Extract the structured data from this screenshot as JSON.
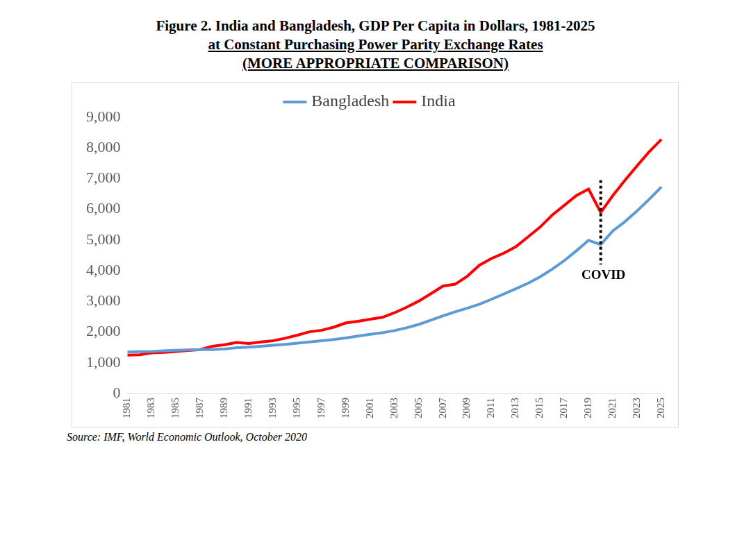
{
  "chart_data": {
    "type": "line",
    "title": "Figure 2. India and Bangladesh, GDP Per Capita in Dollars, 1981-2025",
    "subtitle": [
      "at Constant Purchasing Power Parity Exchange Rates",
      "(MORE APPROPRIATE COMPARISON)"
    ],
    "source": "Source: IMF, World Economic Outlook, October 2020",
    "categories": [
      "1981",
      null,
      "1983",
      null,
      "1985",
      null,
      "1987",
      null,
      "1989",
      null,
      "1991",
      null,
      "1993",
      null,
      "1995",
      null,
      "1997",
      null,
      "1999",
      null,
      "2001",
      null,
      "2003",
      null,
      "2005",
      null,
      "2007",
      null,
      "2009",
      null,
      "2011",
      null,
      "2013",
      null,
      "2015",
      null,
      "2017",
      null,
      "2019",
      null,
      "2021",
      null,
      "2023",
      null,
      "2025"
    ],
    "series": [
      {
        "name": "Bangladesh",
        "color": "#5b9bd5",
        "values": [
          1350,
          1360,
          1370,
          1390,
          1410,
          1420,
          1430,
          1430,
          1450,
          1490,
          1510,
          1540,
          1570,
          1600,
          1640,
          1680,
          1720,
          1760,
          1810,
          1870,
          1930,
          1980,
          2050,
          2140,
          2250,
          2390,
          2530,
          2660,
          2780,
          2910,
          3070,
          3240,
          3410,
          3590,
          3800,
          4050,
          4330,
          4650,
          4990,
          4850,
          5300,
          5600,
          5950,
          6330,
          6730
        ]
      },
      {
        "name": "India",
        "color": "#ff0000",
        "values": [
          1250,
          1260,
          1320,
          1340,
          1370,
          1400,
          1430,
          1540,
          1590,
          1660,
          1630,
          1680,
          1720,
          1800,
          1900,
          2010,
          2060,
          2160,
          2300,
          2350,
          2420,
          2480,
          2630,
          2810,
          3010,
          3250,
          3500,
          3560,
          3820,
          4180,
          4400,
          4570,
          4780,
          5100,
          5420,
          5810,
          6130,
          6450,
          6660,
          5900,
          6450,
          6950,
          7420,
          7880,
          8280
        ]
      }
    ],
    "ylim": [
      0,
      9000
    ],
    "yticks": [
      0,
      {
        "value": 1000,
        "label": "1,000"
      },
      {
        "value": 2000,
        "label": "2,000"
      },
      {
        "value": 3000,
        "label": "3,000"
      },
      {
        "value": 4000,
        "label": "4,000"
      },
      {
        "value": 5000,
        "label": "5,000"
      },
      {
        "value": 6000,
        "label": "6,000"
      },
      {
        "value": 7000,
        "label": "7,000"
      },
      {
        "value": 8000,
        "label": "8,000"
      },
      {
        "value": 9000,
        "label": "9,000"
      }
    ],
    "grid": false,
    "legend": "top",
    "annotations": [
      {
        "text": "COVID",
        "x_index": 39,
        "y_from": 4200,
        "y_to": 6950,
        "line_style": "dotted"
      }
    ]
  }
}
